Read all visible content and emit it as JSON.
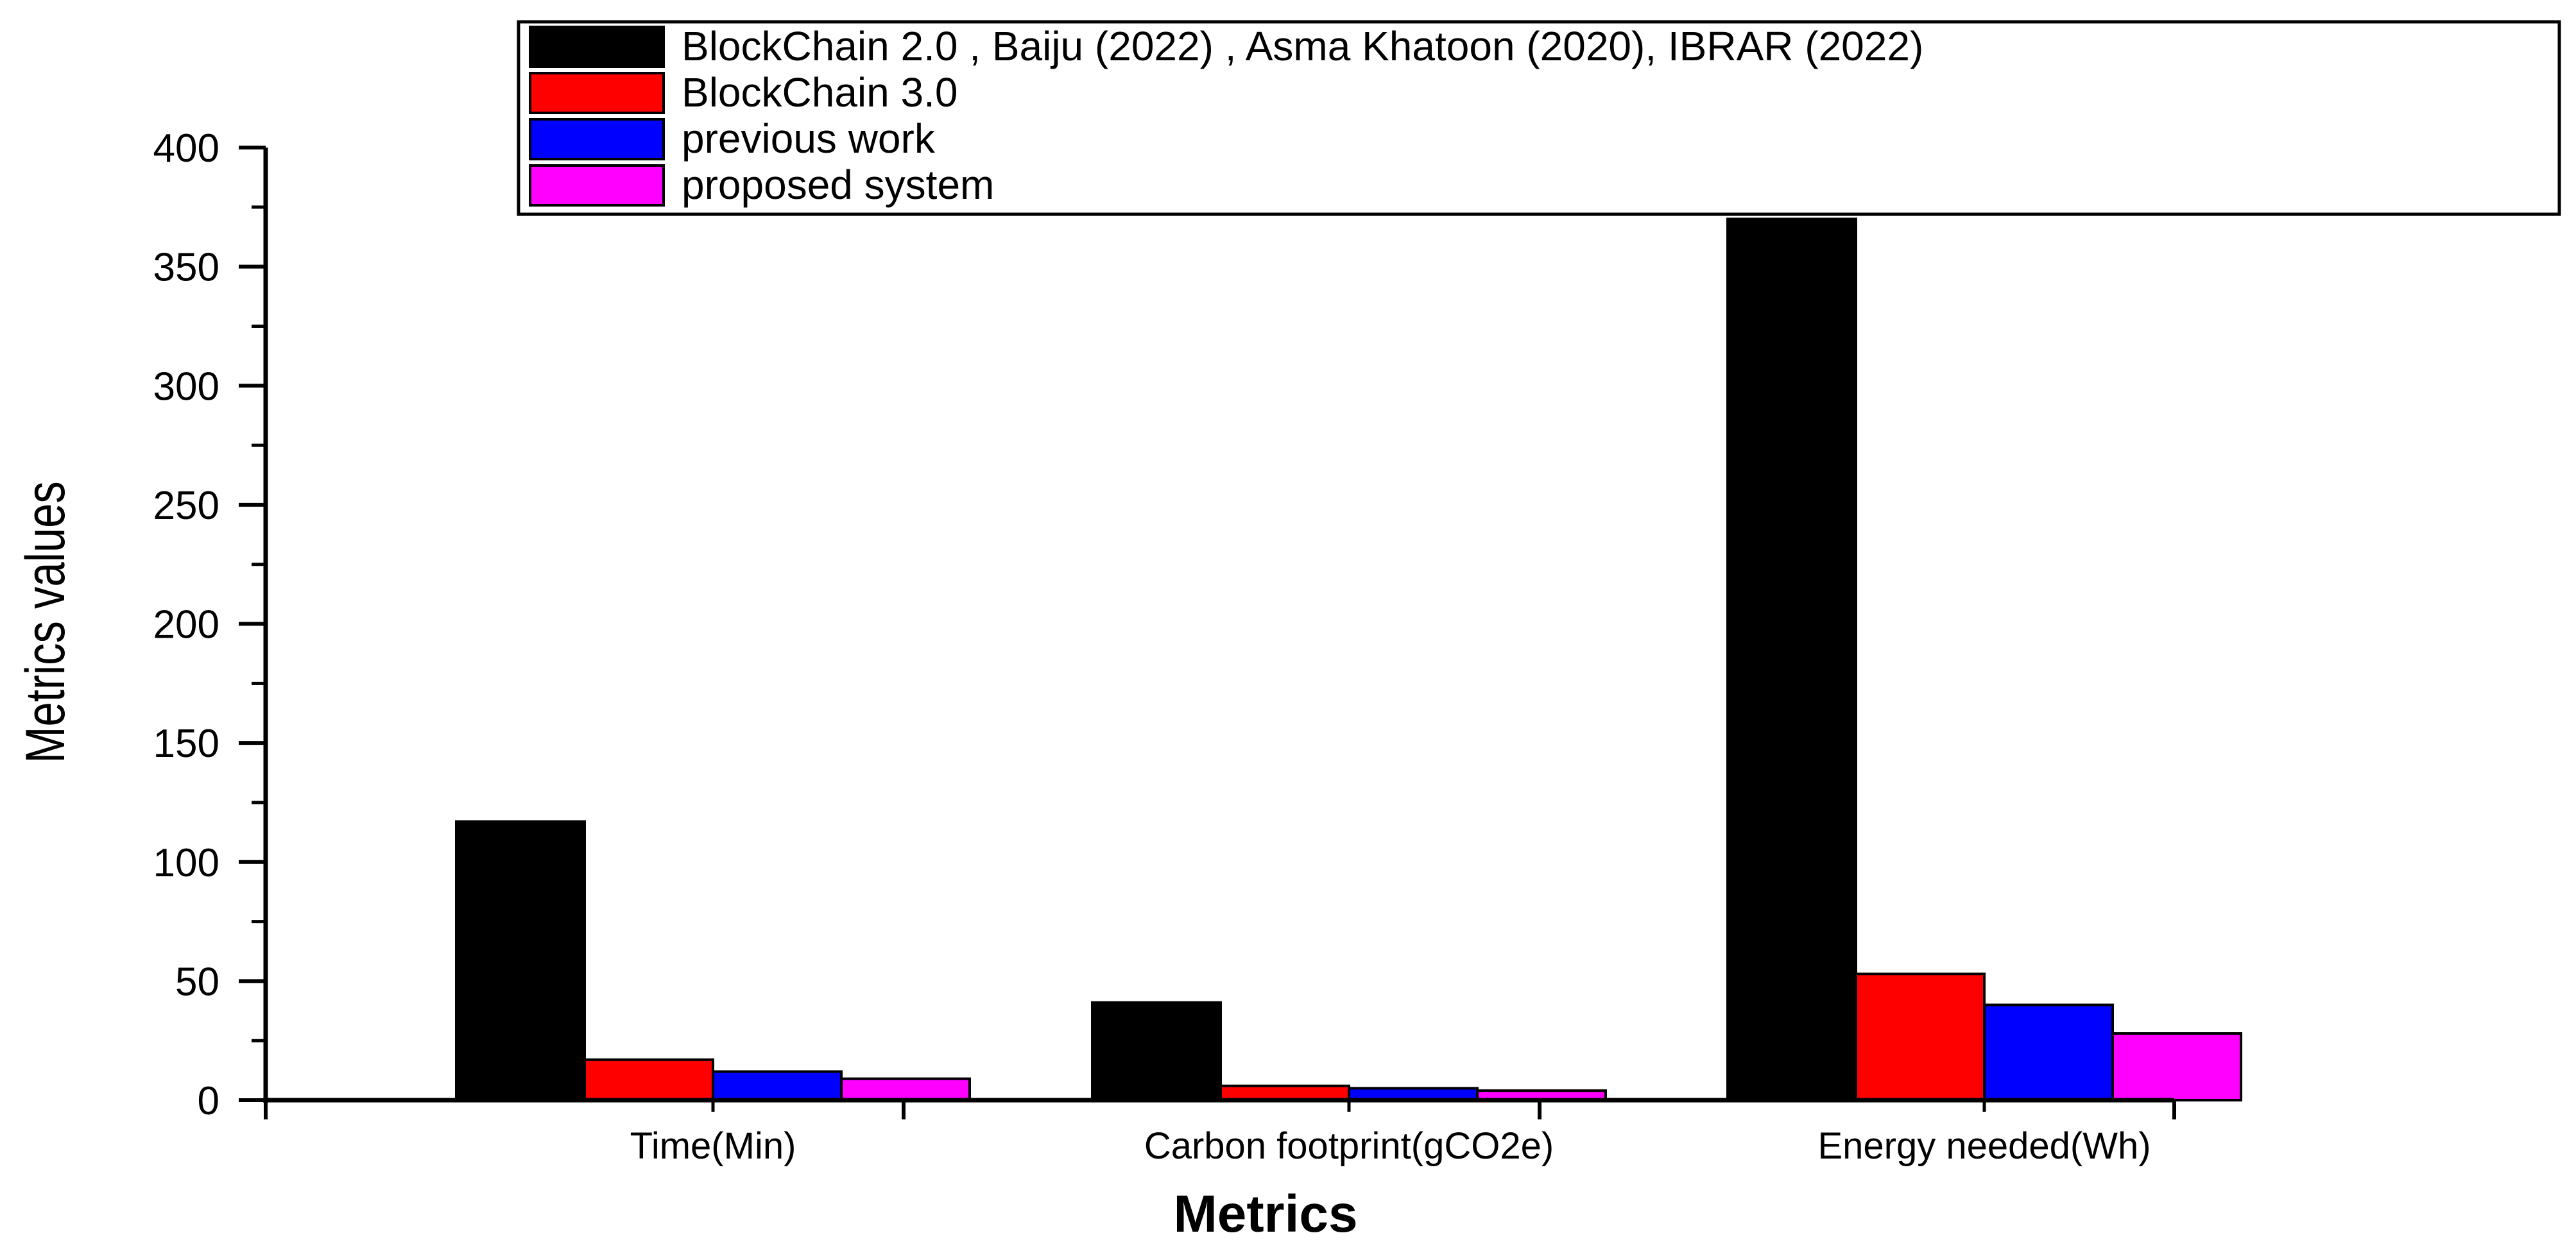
{
  "chart_data": {
    "type": "bar",
    "xlabel": "Metrics",
    "ylabel": "Metrics values",
    "ylim": [
      0,
      400
    ],
    "yticks": [
      0,
      50,
      100,
      150,
      200,
      250,
      300,
      350,
      400
    ],
    "categories": [
      "Time(Min)",
      "Carbon footprint(gCO2e)",
      "Energy needed(Wh)"
    ],
    "series": [
      {
        "name": "BlockChain 2.0 , Baiju (2022) , Asma Khatoon (2020), IBRAR (2022)",
        "color": "#000000",
        "values": [
          117,
          41,
          370
        ]
      },
      {
        "name": "BlockChain 3.0",
        "color": "#ff0000",
        "values": [
          17,
          6,
          53
        ]
      },
      {
        "name": "previous work",
        "color": "#0000ff",
        "values": [
          12,
          5,
          40
        ]
      },
      {
        "name": "proposed system",
        "color": "#ff00ff",
        "values": [
          9,
          4,
          28
        ]
      }
    ],
    "grid": false,
    "legend_position": "top-right"
  }
}
